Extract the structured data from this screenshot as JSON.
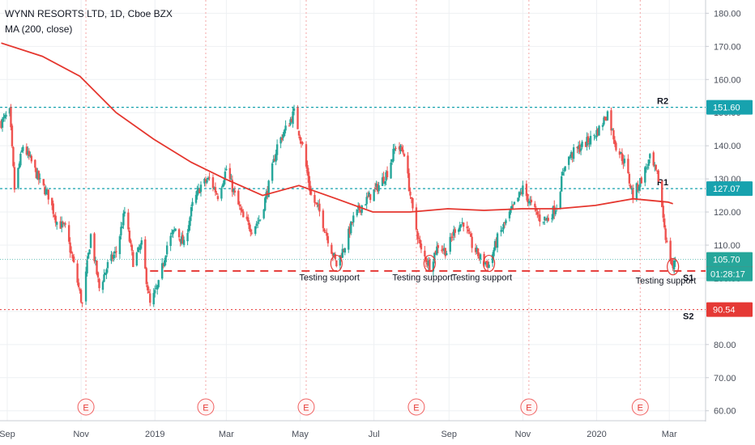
{
  "header": {
    "symbol_line": "WYNN RESORTS LTD, 1D, Cboe BZX",
    "indicator_line": "MA (200, close)"
  },
  "chart_data": {
    "type": "candlestick",
    "title": "WYNN RESORTS LTD, 1D, Cboe BZX",
    "indicator": "MA (200, close)",
    "ylim": [
      57,
      184
    ],
    "y_ticks": [
      "180.00",
      "170.00",
      "160.00",
      "150.00",
      "140.00",
      "130.00",
      "120.00",
      "110.00",
      "100.00",
      "90.00",
      "80.00",
      "70.00",
      "60.00"
    ],
    "y_tick_values": [
      180,
      170,
      160,
      150,
      140,
      130,
      120,
      110,
      100,
      90,
      80,
      70,
      60
    ],
    "x_ticks": [
      {
        "label": "Sep",
        "date": "2018-09-01"
      },
      {
        "label": "Nov",
        "date": "2018-11-01"
      },
      {
        "label": "2019",
        "date": "2019-01-01"
      },
      {
        "label": "Mar",
        "date": "2019-03-01"
      },
      {
        "label": "May",
        "date": "2019-05-01"
      },
      {
        "label": "Jul",
        "date": "2019-07-01"
      },
      {
        "label": "Sep",
        "date": "2019-09-01"
      },
      {
        "label": "Nov",
        "date": "2019-11-01"
      },
      {
        "label": "2020",
        "date": "2020-01-01"
      },
      {
        "label": "Mar",
        "date": "2020-03-01"
      }
    ],
    "grid": true,
    "colors": {
      "up": "#26a69a",
      "down": "#ef5350",
      "ma": "#e5362e",
      "r_line": "#17a2ae",
      "s_line": "#e53935",
      "e_marker": "#f06262"
    },
    "price_path": [
      [
        "2018-08-27",
        147
      ],
      [
        "2018-09-03",
        150
      ],
      [
        "2018-09-07",
        127
      ],
      [
        "2018-09-14",
        140
      ],
      [
        "2018-09-21",
        135
      ],
      [
        "2018-09-28",
        129
      ],
      [
        "2018-10-05",
        125
      ],
      [
        "2018-10-12",
        117
      ],
      [
        "2018-10-19",
        115
      ],
      [
        "2018-10-26",
        104
      ],
      [
        "2018-11-02",
        92
      ],
      [
        "2018-11-09",
        113
      ],
      [
        "2018-11-16",
        97
      ],
      [
        "2018-11-23",
        104
      ],
      [
        "2018-11-30",
        108
      ],
      [
        "2018-12-07",
        120
      ],
      [
        "2018-12-14",
        105
      ],
      [
        "2018-12-21",
        110
      ],
      [
        "2018-12-28",
        92
      ],
      [
        "2019-01-04",
        98
      ],
      [
        "2019-01-11",
        110
      ],
      [
        "2019-01-18",
        115
      ],
      [
        "2019-01-25",
        110
      ],
      [
        "2019-02-01",
        122
      ],
      [
        "2019-02-08",
        128
      ],
      [
        "2019-02-15",
        130
      ],
      [
        "2019-02-22",
        125
      ],
      [
        "2019-03-01",
        133
      ],
      [
        "2019-03-08",
        125
      ],
      [
        "2019-03-15",
        118
      ],
      [
        "2019-03-22",
        115
      ],
      [
        "2019-03-29",
        118
      ],
      [
        "2019-04-05",
        128
      ],
      [
        "2019-04-12",
        140
      ],
      [
        "2019-04-19",
        145
      ],
      [
        "2019-04-26",
        150
      ],
      [
        "2019-05-03",
        140
      ],
      [
        "2019-05-10",
        125
      ],
      [
        "2019-05-17",
        120
      ],
      [
        "2019-05-24",
        112
      ],
      [
        "2019-05-31",
        104
      ],
      [
        "2019-06-07",
        110
      ],
      [
        "2019-06-14",
        118
      ],
      [
        "2019-06-21",
        122
      ],
      [
        "2019-06-28",
        125
      ],
      [
        "2019-07-05",
        128
      ],
      [
        "2019-07-12",
        132
      ],
      [
        "2019-07-19",
        140
      ],
      [
        "2019-07-26",
        138
      ],
      [
        "2019-08-02",
        120
      ],
      [
        "2019-08-09",
        108
      ],
      [
        "2019-08-16",
        104
      ],
      [
        "2019-08-23",
        110
      ],
      [
        "2019-08-30",
        108
      ],
      [
        "2019-09-06",
        115
      ],
      [
        "2019-09-13",
        117
      ],
      [
        "2019-09-20",
        110
      ],
      [
        "2019-09-27",
        106
      ],
      [
        "2019-10-04",
        104
      ],
      [
        "2019-10-11",
        112
      ],
      [
        "2019-10-18",
        117
      ],
      [
        "2019-10-25",
        122
      ],
      [
        "2019-11-01",
        127
      ],
      [
        "2019-11-08",
        122
      ],
      [
        "2019-11-15",
        118
      ],
      [
        "2019-11-22",
        118
      ],
      [
        "2019-11-29",
        122
      ],
      [
        "2019-12-06",
        135
      ],
      [
        "2019-12-13",
        138
      ],
      [
        "2019-12-20",
        140
      ],
      [
        "2019-12-27",
        142
      ],
      [
        "2020-01-03",
        145
      ],
      [
        "2020-01-10",
        150
      ],
      [
        "2020-01-17",
        140
      ],
      [
        "2020-01-24",
        135
      ],
      [
        "2020-01-31",
        125
      ],
      [
        "2020-02-07",
        130
      ],
      [
        "2020-02-14",
        136
      ],
      [
        "2020-02-21",
        130
      ],
      [
        "2020-02-28",
        110
      ],
      [
        "2020-03-04",
        103
      ],
      [
        "2020-03-06",
        105.7
      ]
    ],
    "ma_path": [
      [
        "2018-08-27",
        171
      ],
      [
        "2018-09-30",
        167
      ],
      [
        "2018-10-31",
        161
      ],
      [
        "2018-11-30",
        150
      ],
      [
        "2018-12-31",
        142
      ],
      [
        "2019-01-31",
        135
      ],
      [
        "2019-02-28",
        130
      ],
      [
        "2019-03-31",
        125
      ],
      [
        "2019-04-30",
        128
      ],
      [
        "2019-05-31",
        124
      ],
      [
        "2019-06-30",
        120
      ],
      [
        "2019-07-31",
        120
      ],
      [
        "2019-08-31",
        121
      ],
      [
        "2019-09-30",
        120.5
      ],
      [
        "2019-10-31",
        121
      ],
      [
        "2019-11-30",
        121
      ],
      [
        "2019-12-31",
        122
      ],
      [
        "2020-01-31",
        124
      ],
      [
        "2020-02-29",
        123
      ],
      [
        "2020-03-04",
        122.5
      ]
    ],
    "levels": [
      {
        "name": "R2",
        "value": 151.6,
        "label": "151.60",
        "kind": "resistance"
      },
      {
        "name": "R1",
        "value": 127.07,
        "label": "127.07",
        "kind": "resistance"
      },
      {
        "name": "S1",
        "value": 102.21,
        "label": "102.21",
        "kind": "support"
      },
      {
        "name": "S2",
        "value": 90.54,
        "label": "90.54",
        "kind": "support"
      }
    ],
    "current_price": {
      "value": 105.7,
      "label": "105.70",
      "countdown": "01:28:17"
    },
    "earnings_dates": [
      "2018-11-05",
      "2019-02-12",
      "2019-05-06",
      "2019-08-05",
      "2019-11-06",
      "2020-02-06"
    ],
    "earnings_label": "E",
    "annotations": [
      {
        "text": "Testing support",
        "date": "2019-05-31",
        "value": 104
      },
      {
        "text": "Testing support",
        "date": "2019-08-16",
        "value": 104
      },
      {
        "text": "Testing support",
        "date": "2019-10-04",
        "value": 104
      },
      {
        "text": "Testing support",
        "date": "2020-03-04",
        "value": 103
      }
    ]
  }
}
